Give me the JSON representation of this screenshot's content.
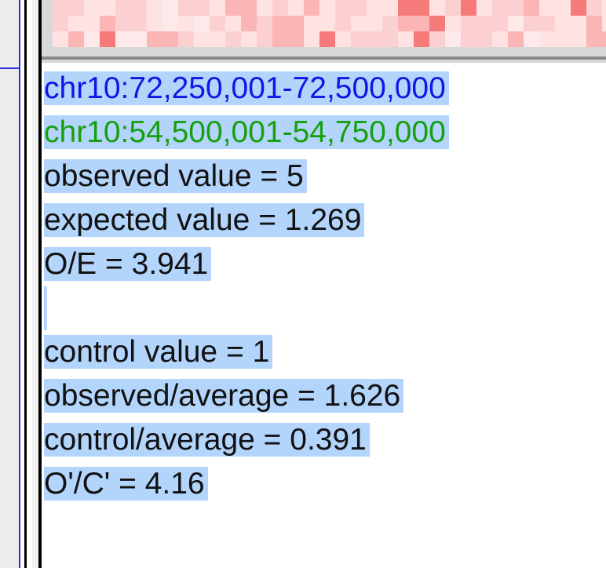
{
  "colors": {
    "heatmap_base": "#ffe2e2",
    "heatmap_mid": "#fbb5b5",
    "heatmap_strong": "#f77a7a",
    "selection": "#b3d4fb",
    "locus_a": "#1414e6",
    "locus_b": "#16a00e"
  },
  "tooltip": {
    "locus_a": "chr10:72,250,001-72,500,000",
    "locus_b": "chr10:54,500,001-54,750,000",
    "observed": "observed value = 5",
    "expected": "expected value = 1.269",
    "oe": "O/E = 3.941",
    "control": "control value = 1",
    "observed_avg": "observed/average = 1.626",
    "control_avg": "control/average = 0.391",
    "oc": "O'/C' = 4.16"
  }
}
